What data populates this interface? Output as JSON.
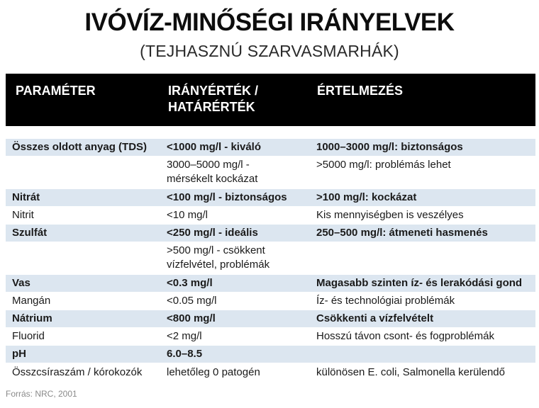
{
  "title": "IVÓVÍZ-MINŐSÉGI IRÁNYELVEK",
  "subtitle": "(TEJHASZNÚ SZARVASMARHÁK)",
  "table": {
    "headers": [
      "PARAMÉTER",
      "IRÁNYÉRTÉK / HATÁRÉRTÉK",
      "ÉRTELMEZÉS"
    ],
    "rows": [
      {
        "param": "Összes oldott anyag (TDS)",
        "value": "<1000 mg/l - kiváló",
        "note": "1000–3000 mg/l: biztonságos"
      },
      {
        "param": "",
        "value": "3000–5000 mg/l - mérsékelt kockázat",
        "note": ">5000 mg/l: problémás lehet"
      },
      {
        "param": "Nitrát",
        "value": "<100 mg/l - biztonságos",
        "note": ">100 mg/l: kockázat"
      },
      {
        "param": "Nitrit",
        "value": "<10 mg/l",
        "note": "Kis mennyiségben is veszélyes"
      },
      {
        "param": "Szulfát",
        "value": "<250 mg/l - ideális",
        "note": "250–500 mg/l: átmeneti hasmenés"
      },
      {
        "param": "",
        "value": ">500 mg/l - csökkent vízfelvétel, problémák",
        "note": ""
      },
      {
        "param": "Vas",
        "value": "<0.3 mg/l",
        "note": "Magasabb szinten íz- és lerakódási gond"
      },
      {
        "param": "Mangán",
        "value": "<0.05 mg/l",
        "note": "Íz- és technológiai problémák"
      },
      {
        "param": "Nátrium",
        "value": "<800 mg/l",
        "note": "Csökkenti a vízfelvételt"
      },
      {
        "param": "Fluorid",
        "value": "<2 mg/l",
        "note": "Hosszú távon csont- és fogproblémák"
      },
      {
        "param": "pH",
        "value": "6.0–8.5",
        "note": ""
      },
      {
        "param": "Összcsíraszám / kórokozók",
        "value": "lehetőleg 0 patogén",
        "note": "különösen E. coli, Salmonella kerülendő"
      }
    ]
  },
  "source": "Forrás: NRC, 2001",
  "colors": {
    "header_bg": "#000000",
    "header_text": "#ffffff",
    "row_shade": "#dce6f0"
  }
}
